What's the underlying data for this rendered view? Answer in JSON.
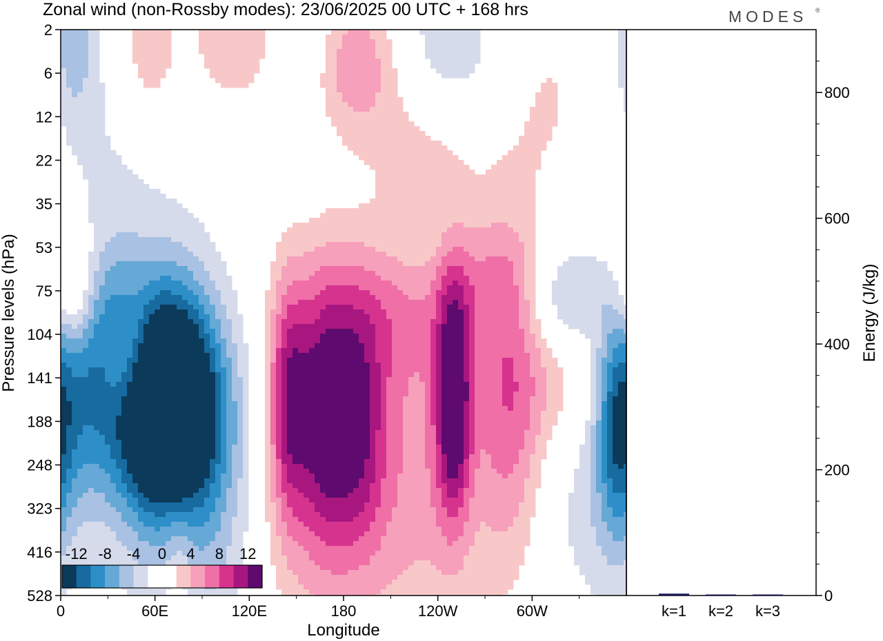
{
  "title": "Zonal wind (non-Rossby modes):  23/06/2025  00 UTC  + 168 hrs",
  "brand": {
    "name": "MODES",
    "mark": "®"
  },
  "colors": {
    "scale": [
      "#0b3a5b",
      "#176b9f",
      "#2e8fc8",
      "#66a8d6",
      "#a9c1e3",
      "#d6dbeb",
      "#ffffff",
      "#ffffff",
      "#f8c8c8",
      "#f6a0bb",
      "#ef6fa6",
      "#d6338f",
      "#a8177f",
      "#5e0a6e"
    ]
  },
  "chart_data": [
    {
      "type": "heatmap",
      "title": "Zonal wind (non-Rossby modes):  23/06/2025  00 UTC  + 168 hrs",
      "xlabel": "Longitude",
      "ylabel": "Pressure levels (hPa)",
      "x_ticks": [
        "0",
        "60E",
        "120E",
        "180",
        "120W",
        "60W"
      ],
      "x_tick_values": [
        0,
        60,
        120,
        180,
        240,
        300
      ],
      "xlim": [
        0,
        360
      ],
      "y_ticks": [
        "2",
        "6",
        "12",
        "22",
        "35",
        "53",
        "75",
        "104",
        "141",
        "188",
        "248",
        "323",
        "416",
        "528"
      ],
      "colorbar": {
        "tick_labels": [
          "-12",
          "-8",
          "-4",
          "0",
          "4",
          "8",
          "12"
        ],
        "levels": [
          -14,
          -12,
          -10,
          -8,
          -6,
          -4,
          -2,
          0,
          2,
          4,
          6,
          8,
          10,
          12,
          14
        ]
      },
      "features": [
        {
          "lon": 68,
          "level": 141,
          "value": -12,
          "sx": 20,
          "sy": 1.7
        },
        {
          "lon": 62,
          "level": 188,
          "value": -10,
          "sx": 28,
          "sy": 1.5
        },
        {
          "lon": 75,
          "level": 230,
          "value": -5,
          "sx": 35,
          "sy": 2.5
        },
        {
          "lon": 95,
          "level": 340,
          "value": -3,
          "sx": 25,
          "sy": 3.5
        },
        {
          "lon": 15,
          "level": 141,
          "value": -5,
          "sx": 12,
          "sy": 2.0
        },
        {
          "lon": 33,
          "level": 95,
          "value": -7,
          "sx": 14,
          "sy": 1.2
        },
        {
          "lon": 8,
          "level": 75,
          "value": 7,
          "sx": 12,
          "sy": 1.0
        },
        {
          "lon": 42,
          "level": 120,
          "value": 8,
          "sx": 12,
          "sy": 1.0
        },
        {
          "lon": 145,
          "level": 160,
          "value": 9,
          "sx": 9,
          "sy": 2.0
        },
        {
          "lon": 168,
          "level": 170,
          "value": 9,
          "sx": 12,
          "sy": 2.2
        },
        {
          "lon": 190,
          "level": 188,
          "value": 7,
          "sx": 12,
          "sy": 2.0
        },
        {
          "lon": 170,
          "level": 250,
          "value": 5,
          "sx": 45,
          "sy": 2.8
        },
        {
          "lon": 235,
          "level": 260,
          "value": 3,
          "sx": 30,
          "sy": 3.0
        },
        {
          "lon": 250,
          "level": 160,
          "value": 13,
          "sx": 8,
          "sy": 1.9
        },
        {
          "lon": 285,
          "level": 170,
          "value": 6,
          "sx": 15,
          "sy": 2.5
        },
        {
          "lon": 320,
          "level": 120,
          "value": 5,
          "sx": 25,
          "sy": 1.5
        },
        {
          "lon": 355,
          "level": 180,
          "value": -11,
          "sx": 10,
          "sy": 2.0
        },
        {
          "lon": 335,
          "level": 260,
          "value": -3,
          "sx": 20,
          "sy": 2.5
        },
        {
          "lon": 320,
          "level": 80,
          "value": -8,
          "sx": 20,
          "sy": 1.0
        },
        {
          "lon": 270,
          "level": 68,
          "value": 4,
          "sx": 40,
          "sy": 1.0
        },
        {
          "lon": 210,
          "level": 90,
          "value": 4,
          "sx": 30,
          "sy": 1.2
        },
        {
          "lon": 232,
          "level": 55,
          "value": -3,
          "sx": 20,
          "sy": 1.2
        },
        {
          "lon": 180,
          "level": 5,
          "value": 11,
          "sx": 25,
          "sy": 1.3
        },
        {
          "lon": 160,
          "level": 3,
          "value": -7,
          "sx": 20,
          "sy": 1.2
        },
        {
          "lon": 245,
          "level": 4,
          "value": -5,
          "sx": 35,
          "sy": 1.4
        },
        {
          "lon": 230,
          "level": 18,
          "value": 4,
          "sx": 25,
          "sy": 1.6
        },
        {
          "lon": 170,
          "level": 10,
          "value": -3,
          "sx": 35,
          "sy": 1.3
        },
        {
          "lon": 120,
          "level": 3,
          "value": 4,
          "sx": 30,
          "sy": 1.3
        },
        {
          "lon": 55,
          "level": 3,
          "value": 4,
          "sx": 12,
          "sy": 1.3
        },
        {
          "lon": 8,
          "level": 2.5,
          "value": -5,
          "sx": 10,
          "sy": 1.3
        },
        {
          "lon": 35,
          "level": 20,
          "value": -2,
          "sx": 30,
          "sy": 2.5
        },
        {
          "lon": 300,
          "level": 7,
          "value": 3,
          "sx": 30,
          "sy": 2.0
        },
        {
          "lon": 75,
          "level": 460,
          "value": 3,
          "sx": 8,
          "sy": 1.3
        }
      ]
    },
    {
      "type": "bar",
      "categories": [
        "k=1",
        "k=2",
        "k=3"
      ],
      "values": [
        3,
        1,
        1
      ],
      "ylabel": "Energy (J/kg)",
      "ylim": [
        0,
        900
      ],
      "y_ticks": [
        "0",
        "200",
        "400",
        "600",
        "800"
      ],
      "y_tick_values": [
        0,
        200,
        400,
        600,
        800
      ],
      "bar_color": "#1a1a5e"
    }
  ]
}
